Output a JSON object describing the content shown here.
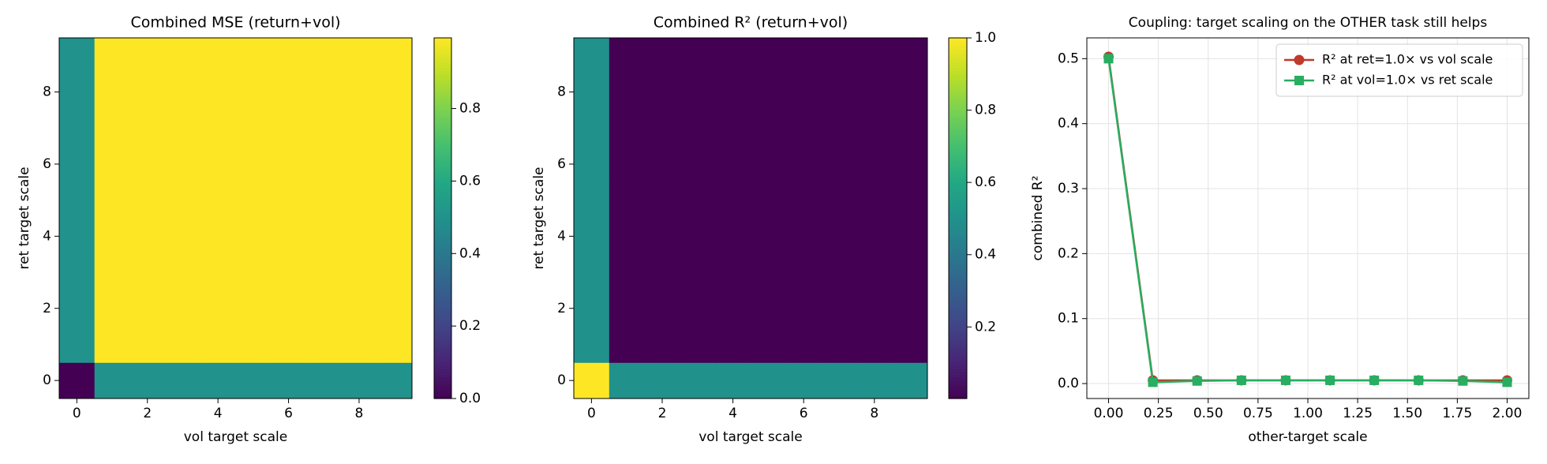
{
  "chart_data": [
    {
      "type": "heatmap",
      "title": "Combined MSE (return+vol)",
      "xlabel": "vol target scale",
      "ylabel": "ret target scale",
      "colormap": "viridis",
      "x": [
        0,
        1,
        2,
        3,
        4,
        5,
        6,
        7,
        8,
        9
      ],
      "y": [
        0,
        1,
        2,
        3,
        4,
        5,
        6,
        7,
        8,
        9
      ],
      "values": [
        [
          0,
          0.5,
          0.5,
          0.5,
          0.5,
          0.5,
          0.5,
          0.5,
          0.5,
          0.5
        ],
        [
          0.5,
          0.995,
          0.995,
          0.995,
          0.995,
          0.995,
          0.995,
          0.995,
          0.995,
          0.995
        ],
        [
          0.5,
          0.995,
          0.995,
          0.995,
          0.995,
          0.995,
          0.995,
          0.995,
          0.995,
          0.995
        ],
        [
          0.5,
          0.995,
          0.995,
          0.995,
          0.995,
          0.995,
          0.995,
          0.995,
          0.995,
          0.995
        ],
        [
          0.5,
          0.995,
          0.995,
          0.995,
          0.995,
          0.995,
          0.995,
          0.995,
          0.995,
          0.995
        ],
        [
          0.5,
          0.995,
          0.995,
          0.995,
          0.995,
          0.995,
          0.995,
          0.995,
          0.995,
          0.995
        ],
        [
          0.5,
          0.995,
          0.995,
          0.995,
          0.995,
          0.995,
          0.995,
          0.995,
          0.995,
          0.995
        ],
        [
          0.5,
          0.995,
          0.995,
          0.995,
          0.995,
          0.995,
          0.995,
          0.995,
          0.995,
          0.995
        ],
        [
          0.5,
          0.995,
          0.995,
          0.995,
          0.995,
          0.995,
          0.995,
          0.995,
          0.995,
          0.995
        ],
        [
          0.5,
          0.995,
          0.995,
          0.995,
          0.995,
          0.995,
          0.995,
          0.995,
          0.995,
          0.995
        ]
      ],
      "xlim": [
        -0.5,
        9.5
      ],
      "ylim": [
        -0.5,
        9.5
      ],
      "xticks": [
        0,
        2,
        4,
        6,
        8
      ],
      "yticks": [
        0,
        2,
        4,
        6,
        8
      ],
      "clim": [
        0,
        0.995
      ],
      "cticks": [
        {
          "value": 0,
          "label": "0.0"
        },
        0.2,
        0.4,
        0.6,
        0.8
      ]
    },
    {
      "type": "heatmap",
      "title": "Combined R² (return+vol)",
      "xlabel": "vol target scale",
      "ylabel": "ret target scale",
      "colormap": "viridis",
      "x": [
        0,
        1,
        2,
        3,
        4,
        5,
        6,
        7,
        8,
        9
      ],
      "y": [
        0,
        1,
        2,
        3,
        4,
        5,
        6,
        7,
        8,
        9
      ],
      "values": [
        [
          1.0,
          0.5,
          0.5,
          0.5,
          0.5,
          0.5,
          0.5,
          0.5,
          0.5,
          0.5
        ],
        [
          0.5,
          0.002,
          0.002,
          0.002,
          0.002,
          0.002,
          0.002,
          0.002,
          0.002,
          0.002
        ],
        [
          0.5,
          0.002,
          0.002,
          0.002,
          0.002,
          0.002,
          0.002,
          0.002,
          0.002,
          0.002
        ],
        [
          0.5,
          0.002,
          0.002,
          0.002,
          0.002,
          0.002,
          0.002,
          0.002,
          0.002,
          0.002
        ],
        [
          0.5,
          0.002,
          0.002,
          0.002,
          0.002,
          0.002,
          0.002,
          0.002,
          0.002,
          0.002
        ],
        [
          0.5,
          0.002,
          0.002,
          0.002,
          0.002,
          0.002,
          0.002,
          0.002,
          0.002,
          0.002
        ],
        [
          0.5,
          0.002,
          0.002,
          0.002,
          0.002,
          0.002,
          0.002,
          0.002,
          0.002,
          0.002
        ],
        [
          0.5,
          0.002,
          0.002,
          0.002,
          0.002,
          0.002,
          0.002,
          0.002,
          0.002,
          0.002
        ],
        [
          0.5,
          0.002,
          0.002,
          0.002,
          0.002,
          0.002,
          0.002,
          0.002,
          0.002,
          0.002
        ],
        [
          0.5,
          0.002,
          0.002,
          0.002,
          0.002,
          0.002,
          0.002,
          0.002,
          0.002,
          0.002
        ]
      ],
      "xlim": [
        -0.5,
        9.5
      ],
      "ylim": [
        -0.5,
        9.5
      ],
      "xticks": [
        0,
        2,
        4,
        6,
        8
      ],
      "yticks": [
        0,
        2,
        4,
        6,
        8
      ],
      "clim": [
        0.002,
        1.0
      ],
      "cticks": [
        0.2,
        0.4,
        0.6,
        0.8,
        {
          "value": 1.0,
          "label": "1.0"
        }
      ]
    },
    {
      "type": "line",
      "title": "Coupling: target scaling on the OTHER task still helps",
      "xlabel": "other-target scale",
      "ylabel": "combined R²",
      "grid": true,
      "legend": "upper right",
      "x": [
        0,
        0.2222,
        0.4444,
        0.6667,
        0.8889,
        1.1111,
        1.3333,
        1.5556,
        1.7778,
        2.0
      ],
      "series": [
        {
          "name": "R² at ret=1.0× vs vol scale",
          "color": "#c0392b",
          "marker": "circle",
          "values": [
            0.503,
            0.005,
            0.005,
            0.005,
            0.005,
            0.005,
            0.005,
            0.005,
            0.005,
            0.005
          ]
        },
        {
          "name": "R² at vol=1.0× vs ret scale",
          "color": "#27ae60",
          "marker": "square",
          "values": [
            0.5,
            0.002,
            0.004,
            0.005,
            0.005,
            0.005,
            0.005,
            0.005,
            0.004,
            0.002
          ]
        }
      ],
      "xlim": [
        -0.109,
        2.109
      ],
      "ylim": [
        -0.023,
        0.532
      ],
      "xticks": [
        {
          "value": 0,
          "label": "0.00"
        },
        0.25,
        {
          "value": 0.5,
          "label": "0.50"
        },
        0.75,
        {
          "value": 1.0,
          "label": "1.00"
        },
        1.25,
        {
          "value": 1.5,
          "label": "1.50"
        },
        1.75,
        {
          "value": 2.0,
          "label": "2.00"
        }
      ],
      "yticks": [
        {
          "value": 0,
          "label": "0.0"
        },
        0.1,
        0.2,
        0.3,
        0.4,
        0.5
      ]
    }
  ]
}
